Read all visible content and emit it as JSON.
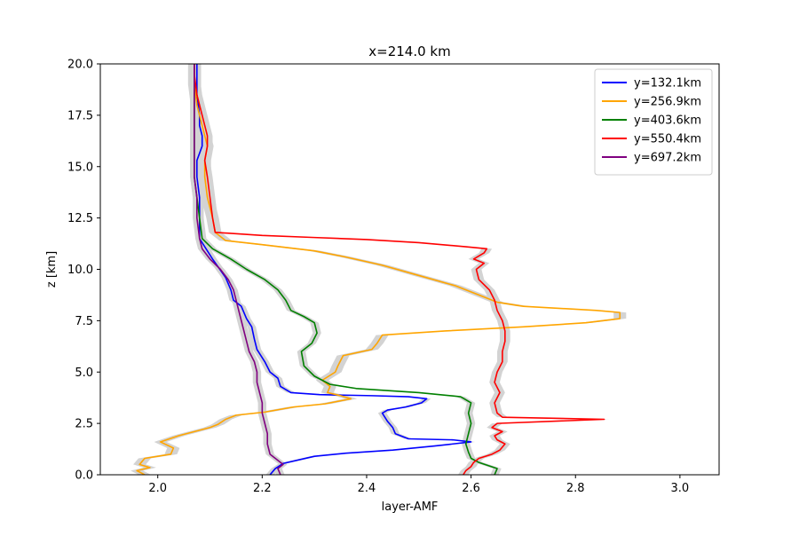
{
  "chart_data": {
    "type": "line",
    "title": "x=214.0 km",
    "xlabel": "layer-AMF",
    "ylabel": "z [km]",
    "xlim": [
      1.89,
      3.075
    ],
    "ylim": [
      0,
      20
    ],
    "xticks": [
      "2.0",
      "2.2",
      "2.4",
      "2.6",
      "2.8",
      "3.0"
    ],
    "xtick_values": [
      2.0,
      2.2,
      2.4,
      2.6,
      2.8,
      3.0
    ],
    "yticks": [
      "0.0",
      "2.5",
      "5.0",
      "7.5",
      "10.0",
      "12.5",
      "15.0",
      "17.5",
      "20.0"
    ],
    "ytick_values": [
      0,
      2.5,
      5,
      7.5,
      10,
      12.5,
      15,
      17.5,
      20
    ],
    "grid": false,
    "legend_position": "top-right",
    "band_color": "#d3d3d3",
    "series": [
      {
        "name": "y=132.1km",
        "color": "#0000ff",
        "band_halfwidth": 0.008,
        "points": [
          [
            2.215,
            0.0
          ],
          [
            2.225,
            0.3
          ],
          [
            2.24,
            0.55
          ],
          [
            2.3,
            0.9
          ],
          [
            2.36,
            1.05
          ],
          [
            2.45,
            1.2
          ],
          [
            2.53,
            1.4
          ],
          [
            2.6,
            1.6
          ],
          [
            2.565,
            1.7
          ],
          [
            2.48,
            1.75
          ],
          [
            2.455,
            2.0
          ],
          [
            2.45,
            2.3
          ],
          [
            2.44,
            2.6
          ],
          [
            2.43,
            3.0
          ],
          [
            2.44,
            3.15
          ],
          [
            2.475,
            3.3
          ],
          [
            2.505,
            3.5
          ],
          [
            2.515,
            3.7
          ],
          [
            2.48,
            3.8
          ],
          [
            2.41,
            3.85
          ],
          [
            2.31,
            3.9
          ],
          [
            2.255,
            4.0
          ],
          [
            2.235,
            4.3
          ],
          [
            2.23,
            4.7
          ],
          [
            2.215,
            5.0
          ],
          [
            2.205,
            5.5
          ],
          [
            2.19,
            6.1
          ],
          [
            2.185,
            6.6
          ],
          [
            2.18,
            7.2
          ],
          [
            2.17,
            7.6
          ],
          [
            2.16,
            8.2
          ],
          [
            2.145,
            8.5
          ],
          [
            2.14,
            9.0
          ],
          [
            2.13,
            9.6
          ],
          [
            2.105,
            10.5
          ],
          [
            2.09,
            11.1
          ],
          [
            2.08,
            11.5
          ],
          [
            2.08,
            12.5
          ],
          [
            2.08,
            13.5
          ],
          [
            2.075,
            14.5
          ],
          [
            2.075,
            15.3
          ],
          [
            2.085,
            16.0
          ],
          [
            2.085,
            16.5
          ],
          [
            2.08,
            17.0
          ],
          [
            2.08,
            17.5
          ],
          [
            2.075,
            18.5
          ],
          [
            2.075,
            19.5
          ],
          [
            2.075,
            20.0
          ]
        ]
      },
      {
        "name": "y=256.9km",
        "color": "#ffa500",
        "band_halfwidth": 0.012,
        "points": [
          [
            1.975,
            0.0
          ],
          [
            1.96,
            0.2
          ],
          [
            1.985,
            0.35
          ],
          [
            1.965,
            0.5
          ],
          [
            1.975,
            0.8
          ],
          [
            2.025,
            1.0
          ],
          [
            2.03,
            1.3
          ],
          [
            2.005,
            1.6
          ],
          [
            2.04,
            1.9
          ],
          [
            2.07,
            2.1
          ],
          [
            2.1,
            2.3
          ],
          [
            2.115,
            2.45
          ],
          [
            2.13,
            2.7
          ],
          [
            2.15,
            2.9
          ],
          [
            2.205,
            3.05
          ],
          [
            2.26,
            3.3
          ],
          [
            2.32,
            3.45
          ],
          [
            2.37,
            3.7
          ],
          [
            2.35,
            3.85
          ],
          [
            2.325,
            4.0
          ],
          [
            2.33,
            4.3
          ],
          [
            2.315,
            4.6
          ],
          [
            2.34,
            5.0
          ],
          [
            2.345,
            5.3
          ],
          [
            2.355,
            5.8
          ],
          [
            2.41,
            6.1
          ],
          [
            2.42,
            6.4
          ],
          [
            2.43,
            6.8
          ],
          [
            2.55,
            7.0
          ],
          [
            2.7,
            7.2
          ],
          [
            2.82,
            7.4
          ],
          [
            2.885,
            7.6
          ],
          [
            2.885,
            7.9
          ],
          [
            2.84,
            8.0
          ],
          [
            2.7,
            8.2
          ],
          [
            2.65,
            8.4
          ],
          [
            2.61,
            8.8
          ],
          [
            2.57,
            9.2
          ],
          [
            2.5,
            9.7
          ],
          [
            2.43,
            10.2
          ],
          [
            2.36,
            10.6
          ],
          [
            2.3,
            10.9
          ],
          [
            2.2,
            11.2
          ],
          [
            2.13,
            11.4
          ],
          [
            2.11,
            11.8
          ],
          [
            2.105,
            12.5
          ],
          [
            2.095,
            13.5
          ],
          [
            2.09,
            14.5
          ],
          [
            2.09,
            15.3
          ],
          [
            2.095,
            16.0
          ],
          [
            2.09,
            16.5
          ],
          [
            2.085,
            17.0
          ],
          [
            2.075,
            18.0
          ],
          [
            2.07,
            19.0
          ],
          [
            2.07,
            20.0
          ]
        ]
      },
      {
        "name": "y=403.6km",
        "color": "#008000",
        "band_halfwidth": 0.008,
        "points": [
          [
            2.645,
            0.0
          ],
          [
            2.65,
            0.3
          ],
          [
            2.615,
            0.6
          ],
          [
            2.6,
            0.8
          ],
          [
            2.595,
            1.1
          ],
          [
            2.59,
            1.5
          ],
          [
            2.595,
            2.0
          ],
          [
            2.6,
            2.5
          ],
          [
            2.595,
            3.0
          ],
          [
            2.6,
            3.5
          ],
          [
            2.58,
            3.8
          ],
          [
            2.5,
            4.0
          ],
          [
            2.38,
            4.2
          ],
          [
            2.33,
            4.4
          ],
          [
            2.3,
            4.8
          ],
          [
            2.28,
            5.3
          ],
          [
            2.275,
            6.0
          ],
          [
            2.295,
            6.4
          ],
          [
            2.305,
            6.9
          ],
          [
            2.3,
            7.4
          ],
          [
            2.28,
            7.7
          ],
          [
            2.255,
            8.0
          ],
          [
            2.245,
            8.5
          ],
          [
            2.23,
            9.0
          ],
          [
            2.205,
            9.5
          ],
          [
            2.17,
            10.0
          ],
          [
            2.14,
            10.5
          ],
          [
            2.105,
            11.0
          ],
          [
            2.085,
            11.5
          ],
          [
            2.08,
            12.5
          ],
          [
            2.075,
            13.5
          ],
          [
            2.07,
            14.5
          ],
          [
            2.07,
            15.5
          ],
          [
            2.07,
            16.5
          ],
          [
            2.07,
            17.5
          ],
          [
            2.07,
            18.5
          ],
          [
            2.07,
            20.0
          ]
        ]
      },
      {
        "name": "y=550.4km",
        "color": "#ff0000",
        "band_halfwidth": 0.01,
        "points": [
          [
            2.585,
            0.0
          ],
          [
            2.59,
            0.2
          ],
          [
            2.6,
            0.4
          ],
          [
            2.605,
            0.6
          ],
          [
            2.615,
            0.8
          ],
          [
            2.64,
            1.0
          ],
          [
            2.655,
            1.2
          ],
          [
            2.665,
            1.5
          ],
          [
            2.65,
            1.7
          ],
          [
            2.645,
            1.9
          ],
          [
            2.66,
            2.1
          ],
          [
            2.64,
            2.3
          ],
          [
            2.65,
            2.5
          ],
          [
            2.855,
            2.7
          ],
          [
            2.66,
            2.8
          ],
          [
            2.65,
            3.0
          ],
          [
            2.645,
            3.5
          ],
          [
            2.655,
            4.0
          ],
          [
            2.645,
            4.5
          ],
          [
            2.65,
            5.0
          ],
          [
            2.66,
            5.5
          ],
          [
            2.66,
            6.0
          ],
          [
            2.665,
            6.5
          ],
          [
            2.665,
            7.0
          ],
          [
            2.66,
            7.5
          ],
          [
            2.65,
            8.0
          ],
          [
            2.645,
            8.5
          ],
          [
            2.635,
            9.0
          ],
          [
            2.615,
            9.5
          ],
          [
            2.61,
            10.0
          ],
          [
            2.625,
            10.3
          ],
          [
            2.605,
            10.5
          ],
          [
            2.625,
            10.8
          ],
          [
            2.63,
            11.0
          ],
          [
            2.59,
            11.1
          ],
          [
            2.5,
            11.3
          ],
          [
            2.4,
            11.45
          ],
          [
            2.3,
            11.55
          ],
          [
            2.2,
            11.65
          ],
          [
            2.11,
            11.8
          ],
          [
            2.105,
            12.5
          ],
          [
            2.1,
            13.5
          ],
          [
            2.095,
            14.5
          ],
          [
            2.09,
            15.3
          ],
          [
            2.095,
            16.0
          ],
          [
            2.095,
            16.5
          ],
          [
            2.09,
            17.0
          ],
          [
            2.085,
            17.5
          ],
          [
            2.075,
            18.5
          ],
          [
            2.07,
            19.5
          ],
          [
            2.07,
            20.0
          ]
        ]
      },
      {
        "name": "y=697.2km",
        "color": "#800080",
        "band_halfwidth": 0.008,
        "points": [
          [
            2.235,
            0.0
          ],
          [
            2.23,
            0.3
          ],
          [
            2.24,
            0.5
          ],
          [
            2.23,
            0.7
          ],
          [
            2.215,
            1.0
          ],
          [
            2.21,
            1.5
          ],
          [
            2.21,
            2.0
          ],
          [
            2.205,
            2.5
          ],
          [
            2.2,
            3.0
          ],
          [
            2.2,
            3.5
          ],
          [
            2.195,
            4.0
          ],
          [
            2.19,
            4.5
          ],
          [
            2.19,
            5.0
          ],
          [
            2.185,
            5.5
          ],
          [
            2.175,
            6.0
          ],
          [
            2.17,
            6.5
          ],
          [
            2.165,
            7.0
          ],
          [
            2.16,
            7.5
          ],
          [
            2.155,
            8.0
          ],
          [
            2.15,
            8.5
          ],
          [
            2.145,
            9.0
          ],
          [
            2.135,
            9.5
          ],
          [
            2.12,
            10.0
          ],
          [
            2.1,
            10.5
          ],
          [
            2.085,
            11.0
          ],
          [
            2.08,
            11.5
          ],
          [
            2.075,
            12.5
          ],
          [
            2.075,
            13.5
          ],
          [
            2.07,
            14.5
          ],
          [
            2.07,
            15.5
          ],
          [
            2.07,
            16.5
          ],
          [
            2.07,
            17.5
          ],
          [
            2.07,
            18.5
          ],
          [
            2.07,
            20.0
          ]
        ]
      }
    ]
  }
}
